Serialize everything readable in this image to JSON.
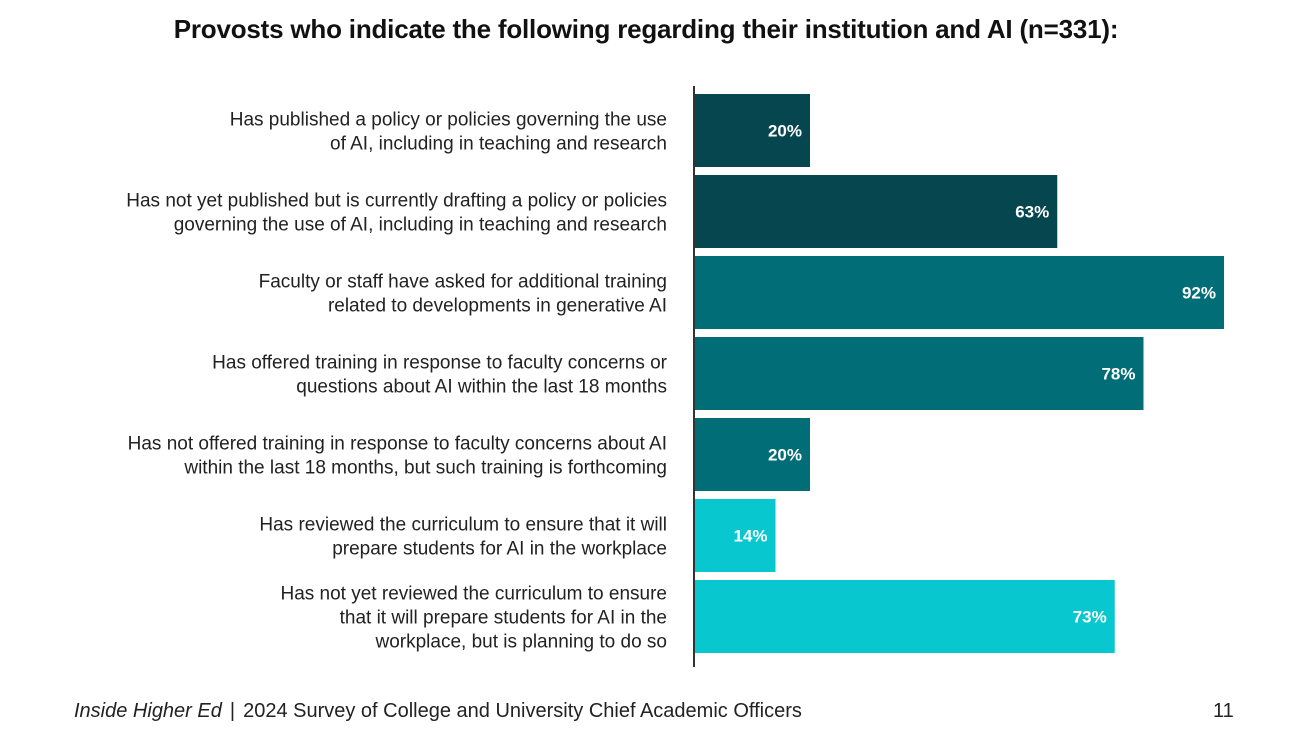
{
  "chart_data": {
    "type": "bar",
    "orientation": "horizontal",
    "title": "Provosts who indicate the following regarding their institution and AI (n=331):",
    "xlabel": "",
    "ylabel": "",
    "xlim": [
      0,
      100
    ],
    "grid": false,
    "value_suffix": "%",
    "categories": [
      [
        "Has published a policy or policies governing the use",
        "of AI, including in teaching and research"
      ],
      [
        "Has not yet published but is currently drafting a policy or policies",
        "governing the use of AI, including in teaching and research"
      ],
      [
        "Faculty or staff have asked for additional training",
        "related to developments in generative AI"
      ],
      [
        "Has offered training in response to faculty concerns or",
        "questions about AI within the last 18 months"
      ],
      [
        "Has not offered training in response to faculty concerns about AI",
        "within the last 18 months, but such training is forthcoming"
      ],
      [
        "Has reviewed the curriculum to ensure that it will",
        "prepare students for AI in the workplace"
      ],
      [
        "Has not yet reviewed the curriculum to ensure",
        "that it will prepare students for AI in the",
        "workplace, but is planning to do so"
      ]
    ],
    "values": [
      20,
      63,
      92,
      78,
      20,
      14,
      73
    ],
    "colors": [
      "#06464f",
      "#06464f",
      "#006d77",
      "#006d77",
      "#006d77",
      "#08c7cf",
      "#08c7cf"
    ]
  },
  "footer": {
    "publication": "Inside Higher Ed",
    "separator": "|",
    "survey": "2024 Survey of College and University Chief Academic Officers",
    "page_number": "11"
  },
  "axis_color": "#333333"
}
